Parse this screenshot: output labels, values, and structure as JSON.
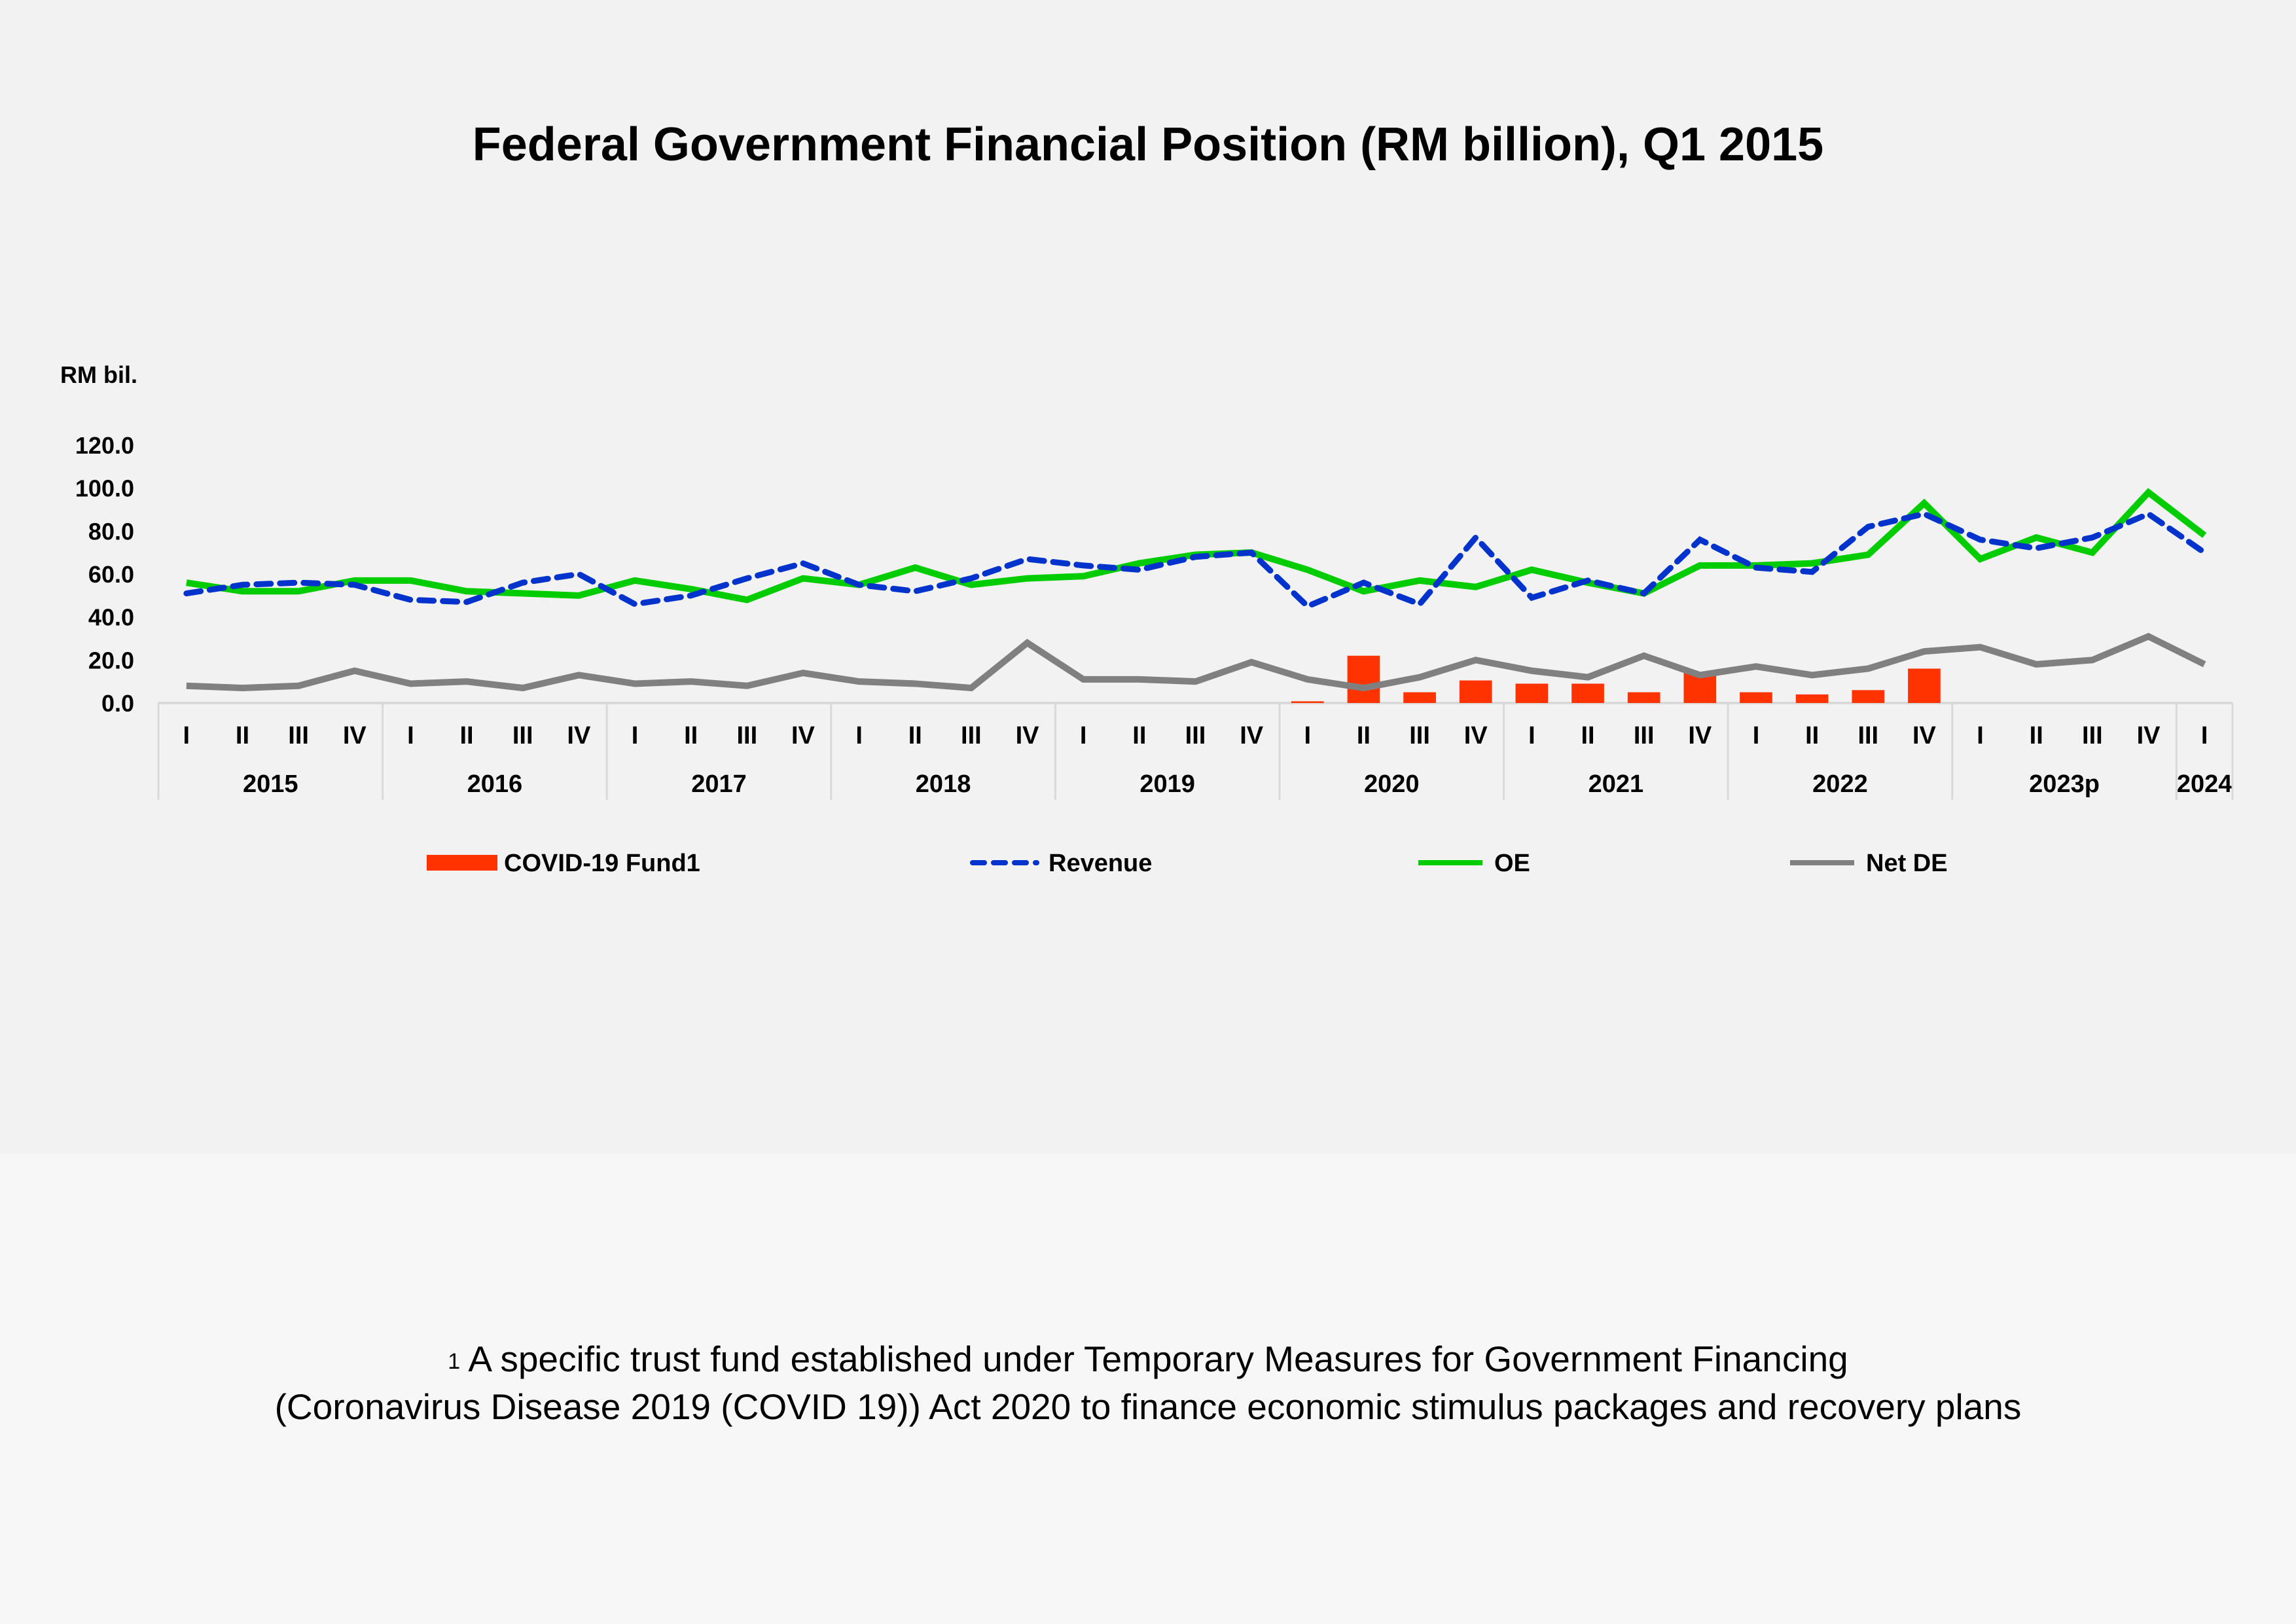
{
  "chart_data": {
    "type": "bar+line",
    "title": "Federal Government Financial Position (RM billion), Q1 2015",
    "ylabel": "RM bil.",
    "ylim": [
      0,
      120
    ],
    "yticks": [
      "0.0",
      "20.0",
      "40.0",
      "60.0",
      "80.0",
      "100.0",
      "120.0"
    ],
    "grid": false,
    "legend_position": "bottom",
    "quarters": [
      "I",
      "II",
      "III",
      "IV",
      "I",
      "II",
      "III",
      "IV",
      "I",
      "II",
      "III",
      "IV",
      "I",
      "II",
      "III",
      "IV",
      "I",
      "II",
      "III",
      "IV",
      "I",
      "II",
      "III",
      "IV",
      "I",
      "II",
      "III",
      "IV",
      "I",
      "II",
      "III",
      "IV",
      "I",
      "II",
      "III",
      "IV",
      "I"
    ],
    "years": [
      {
        "label": "2015",
        "span": 4
      },
      {
        "label": "2016",
        "span": 4
      },
      {
        "label": "2017",
        "span": 4
      },
      {
        "label": "2018",
        "span": 4
      },
      {
        "label": "2019",
        "span": 4
      },
      {
        "label": "2020",
        "span": 4
      },
      {
        "label": "2021",
        "span": 4
      },
      {
        "label": "2022",
        "span": 4
      },
      {
        "label": "2023p",
        "span": 4
      },
      {
        "label": "2024",
        "span": 1
      }
    ],
    "series": [
      {
        "name": "COVID-19 Fund1",
        "kind": "bar",
        "color": "#ff3300",
        "values": [
          null,
          null,
          null,
          null,
          null,
          null,
          null,
          null,
          null,
          null,
          null,
          null,
          null,
          null,
          null,
          null,
          null,
          null,
          null,
          null,
          0.8,
          22,
          5,
          10.5,
          9,
          9,
          5,
          14,
          5,
          4,
          6,
          16,
          null,
          null,
          null,
          null,
          null
        ]
      },
      {
        "name": "Revenue",
        "kind": "line",
        "style": "dashed",
        "color": "#0033cc",
        "values": [
          51,
          55,
          56,
          55,
          48,
          47,
          56,
          60,
          46,
          50,
          58,
          65,
          55,
          52,
          58,
          67,
          64,
          62,
          68,
          70,
          45,
          56,
          46,
          77,
          49,
          57,
          51,
          76,
          63,
          61,
          82,
          88,
          76,
          72,
          77,
          88,
          70
        ]
      },
      {
        "name": "OE",
        "kind": "line",
        "style": "solid",
        "color": "#00cc00",
        "values": [
          56,
          52,
          52,
          57,
          57,
          52,
          51,
          50,
          57,
          53,
          48,
          58,
          55,
          63,
          55,
          58,
          59,
          65,
          69,
          70,
          62,
          52,
          57,
          54,
          62,
          56,
          51,
          64,
          64,
          65,
          69,
          93,
          67,
          77,
          70,
          98,
          78
        ]
      },
      {
        "name": "Net DE",
        "kind": "line",
        "style": "solid",
        "color": "#808080",
        "values": [
          8,
          7,
          8,
          15,
          9,
          10,
          7,
          13,
          9,
          10,
          8,
          14,
          10,
          9,
          7,
          28,
          11,
          11,
          10,
          19,
          11,
          7,
          12,
          20,
          15,
          12,
          22,
          13,
          17,
          13,
          16,
          24,
          26,
          18,
          20,
          31,
          18
        ]
      }
    ]
  },
  "footnote": {
    "marker": "1",
    "line1": "A specific trust fund established under Temporary Measures for Government Financing",
    "line2": "(Coronavirus Disease 2019 (COVID 19)) Act 2020 to finance economic stimulus packages and recovery plans"
  }
}
